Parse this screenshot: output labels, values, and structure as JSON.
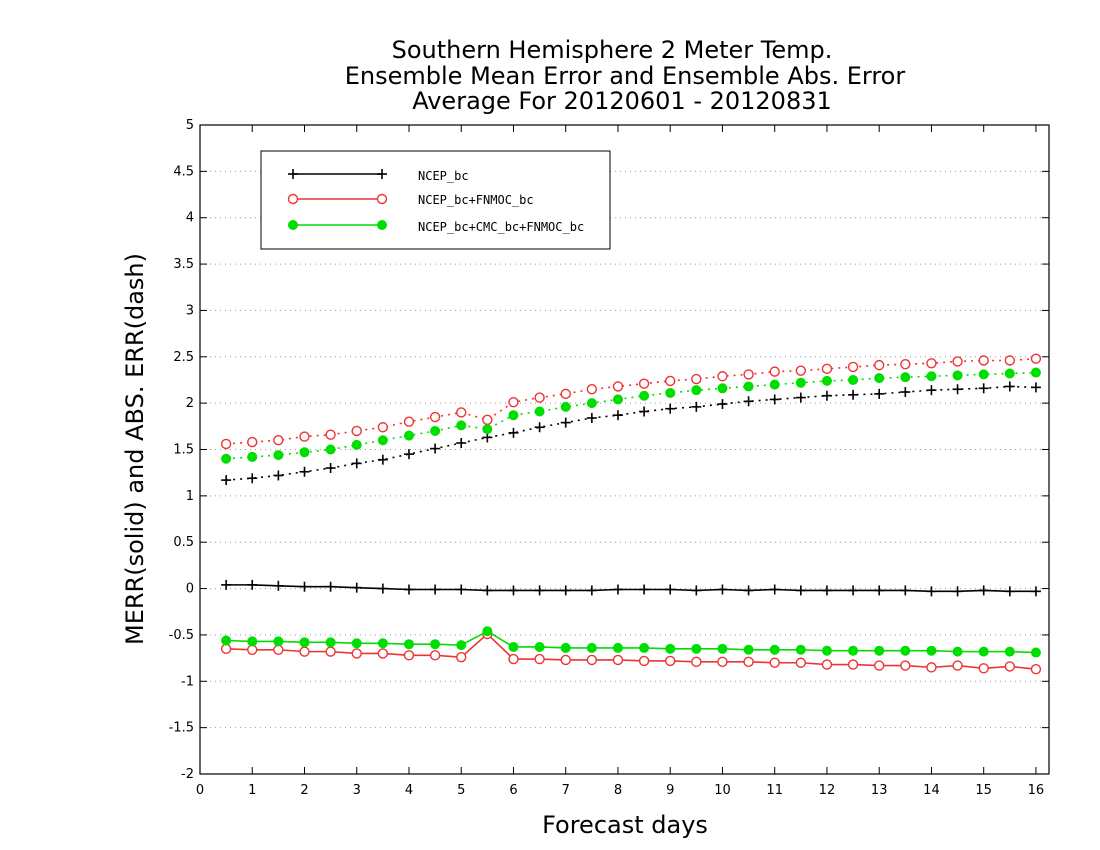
{
  "chart_data": {
    "type": "line",
    "title_lines": [
      "Southern Hemisphere 2 Meter Temp.",
      "Ensemble Mean Error and Ensemble Abs. Error",
      "Average For 20120601 - 20120831"
    ],
    "xlabel": "Forecast days",
    "ylabel": "MERR(solid) and ABS. ERR(dash)",
    "xlim": [
      0,
      16.25
    ],
    "ylim": [
      -2,
      5
    ],
    "xticks": [
      0,
      1,
      2,
      3,
      4,
      5,
      6,
      7,
      8,
      9,
      10,
      11,
      12,
      13,
      14,
      15,
      16
    ],
    "xtick_labels": [
      "0",
      "1",
      "2",
      "3",
      "4",
      "5",
      "6",
      "7",
      "8",
      "9",
      "10",
      "11",
      "12",
      "13",
      "14",
      "15",
      "16"
    ],
    "yticks": [
      -2,
      -1.5,
      -1,
      -0.5,
      0,
      0.5,
      1,
      1.5,
      2,
      2.5,
      3,
      3.5,
      4,
      4.5,
      5
    ],
    "ytick_labels": [
      "-2",
      "-1.5",
      "-1",
      "-0.5",
      "0",
      "0.5",
      "1",
      "1.5",
      "2",
      "2.5",
      "3",
      "3.5",
      "4",
      "4.5",
      "5"
    ],
    "grid": "horizontal dotted",
    "legend_position": "top-left",
    "x": [
      0.5,
      1,
      1.5,
      2,
      2.5,
      3,
      3.5,
      4,
      4.5,
      5,
      5.5,
      6,
      6.5,
      7,
      7.5,
      8,
      8.5,
      9,
      9.5,
      10,
      10.5,
      11,
      11.5,
      12,
      12.5,
      13,
      13.5,
      14,
      14.5,
      15,
      15.5,
      16
    ],
    "series": [
      {
        "name": "NCEP_bc",
        "color": "#000000",
        "marker": "plus",
        "merr": [
          0.04,
          0.04,
          0.03,
          0.02,
          0.02,
          0.01,
          0.0,
          -0.01,
          -0.01,
          -0.01,
          -0.02,
          -0.02,
          -0.02,
          -0.02,
          -0.02,
          -0.01,
          -0.01,
          -0.01,
          -0.02,
          -0.01,
          -0.02,
          -0.01,
          -0.02,
          -0.02,
          -0.02,
          -0.02,
          -0.02,
          -0.03,
          -0.03,
          -0.02,
          -0.03,
          -0.03
        ],
        "abs_err": [
          1.17,
          1.19,
          1.22,
          1.26,
          1.3,
          1.35,
          1.39,
          1.45,
          1.51,
          1.57,
          1.63,
          1.68,
          1.74,
          1.79,
          1.84,
          1.87,
          1.91,
          1.94,
          1.96,
          1.99,
          2.02,
          2.04,
          2.06,
          2.08,
          2.09,
          2.1,
          2.12,
          2.14,
          2.15,
          2.16,
          2.18,
          2.17
        ]
      },
      {
        "name": "NCEP_bc+FNMOC_bc",
        "color": "#ee3333",
        "marker": "open-circle",
        "merr": [
          -0.65,
          -0.66,
          -0.66,
          -0.68,
          -0.68,
          -0.7,
          -0.7,
          -0.72,
          -0.72,
          -0.74,
          -0.49,
          -0.76,
          -0.76,
          -0.77,
          -0.77,
          -0.77,
          -0.78,
          -0.78,
          -0.79,
          -0.79,
          -0.79,
          -0.8,
          -0.8,
          -0.82,
          -0.82,
          -0.83,
          -0.83,
          -0.85,
          -0.83,
          -0.86,
          -0.84,
          -0.87
        ],
        "abs_err": [
          1.56,
          1.58,
          1.6,
          1.64,
          1.66,
          1.7,
          1.74,
          1.8,
          1.85,
          1.9,
          1.82,
          2.01,
          2.06,
          2.1,
          2.15,
          2.18,
          2.21,
          2.24,
          2.26,
          2.29,
          2.31,
          2.34,
          2.35,
          2.37,
          2.39,
          2.41,
          2.42,
          2.43,
          2.45,
          2.46,
          2.46,
          2.48
        ]
      },
      {
        "name": "NCEP_bc+CMC_bc+FNMOC_bc",
        "color": "#00dd00",
        "marker": "filled-circle",
        "merr": [
          -0.56,
          -0.57,
          -0.57,
          -0.58,
          -0.58,
          -0.59,
          -0.59,
          -0.6,
          -0.6,
          -0.61,
          -0.46,
          -0.63,
          -0.63,
          -0.64,
          -0.64,
          -0.64,
          -0.64,
          -0.65,
          -0.65,
          -0.65,
          -0.66,
          -0.66,
          -0.66,
          -0.67,
          -0.67,
          -0.67,
          -0.67,
          -0.67,
          -0.68,
          -0.68,
          -0.68,
          -0.69
        ],
        "abs_err": [
          1.4,
          1.42,
          1.44,
          1.47,
          1.5,
          1.55,
          1.6,
          1.65,
          1.7,
          1.76,
          1.72,
          1.87,
          1.91,
          1.96,
          2.0,
          2.04,
          2.08,
          2.11,
          2.14,
          2.16,
          2.18,
          2.2,
          2.22,
          2.24,
          2.25,
          2.27,
          2.28,
          2.29,
          2.3,
          2.31,
          2.32,
          2.33
        ]
      }
    ]
  }
}
